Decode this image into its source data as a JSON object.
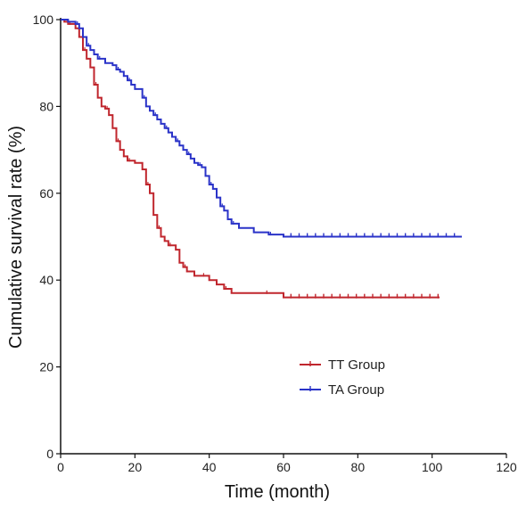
{
  "chart_data": {
    "type": "line",
    "subtype": "kaplan-meier",
    "title": "",
    "xlabel": "Time (month)",
    "ylabel": "Cumulative survival rate (%)",
    "xlim": [
      0,
      120
    ],
    "ylim": [
      0,
      100
    ],
    "x_ticks": [
      0,
      20,
      40,
      60,
      80,
      100,
      120
    ],
    "y_ticks": [
      0,
      20,
      40,
      60,
      80,
      100
    ],
    "grid": false,
    "legend_position": "lower-right",
    "series": [
      {
        "name": "TT Group",
        "color": "#c0262d",
        "step": true,
        "x": [
          0,
          1,
          2,
          4,
          5,
          6,
          7,
          8,
          9,
          10,
          11,
          12,
          13,
          14,
          15,
          16,
          17,
          18,
          20,
          22,
          23,
          24,
          25,
          26,
          27,
          28,
          29,
          31,
          32,
          33,
          34,
          36,
          38,
          40,
          42,
          44,
          46,
          50,
          55,
          60,
          102
        ],
        "y": [
          100,
          99.5,
          99,
          98,
          96,
          93,
          91,
          89,
          85,
          82,
          80,
          79.5,
          78,
          75,
          72,
          70,
          68.5,
          67.5,
          67,
          65.5,
          62,
          60,
          55,
          52,
          50,
          49,
          48,
          47,
          44,
          43,
          42,
          41,
          41,
          40,
          39,
          38,
          37,
          37,
          37,
          36,
          36
        ]
      },
      {
        "name": "TA Group",
        "color": "#2a33c8",
        "step": true,
        "x": [
          0,
          2,
          4,
          5,
          6,
          7,
          8,
          9,
          10,
          12,
          14,
          15,
          16,
          17,
          18,
          19,
          20,
          22,
          23,
          24,
          25,
          26,
          27,
          28,
          29,
          30,
          31,
          32,
          33,
          34,
          35,
          36,
          37,
          38,
          39,
          40,
          41,
          42,
          43,
          44,
          45,
          46,
          48,
          52,
          56,
          60,
          108
        ],
        "y": [
          100,
          99.5,
          99,
          98,
          96,
          94,
          93,
          92,
          91,
          90,
          89.5,
          88.5,
          88,
          87,
          86,
          85,
          84,
          82,
          80,
          79,
          78,
          77,
          76,
          75,
          74,
          73,
          72,
          71,
          70,
          69,
          68,
          67,
          66.5,
          66,
          64,
          62,
          61,
          59,
          57,
          56,
          54,
          53,
          52,
          51,
          50.5,
          50,
          50
        ]
      }
    ]
  }
}
